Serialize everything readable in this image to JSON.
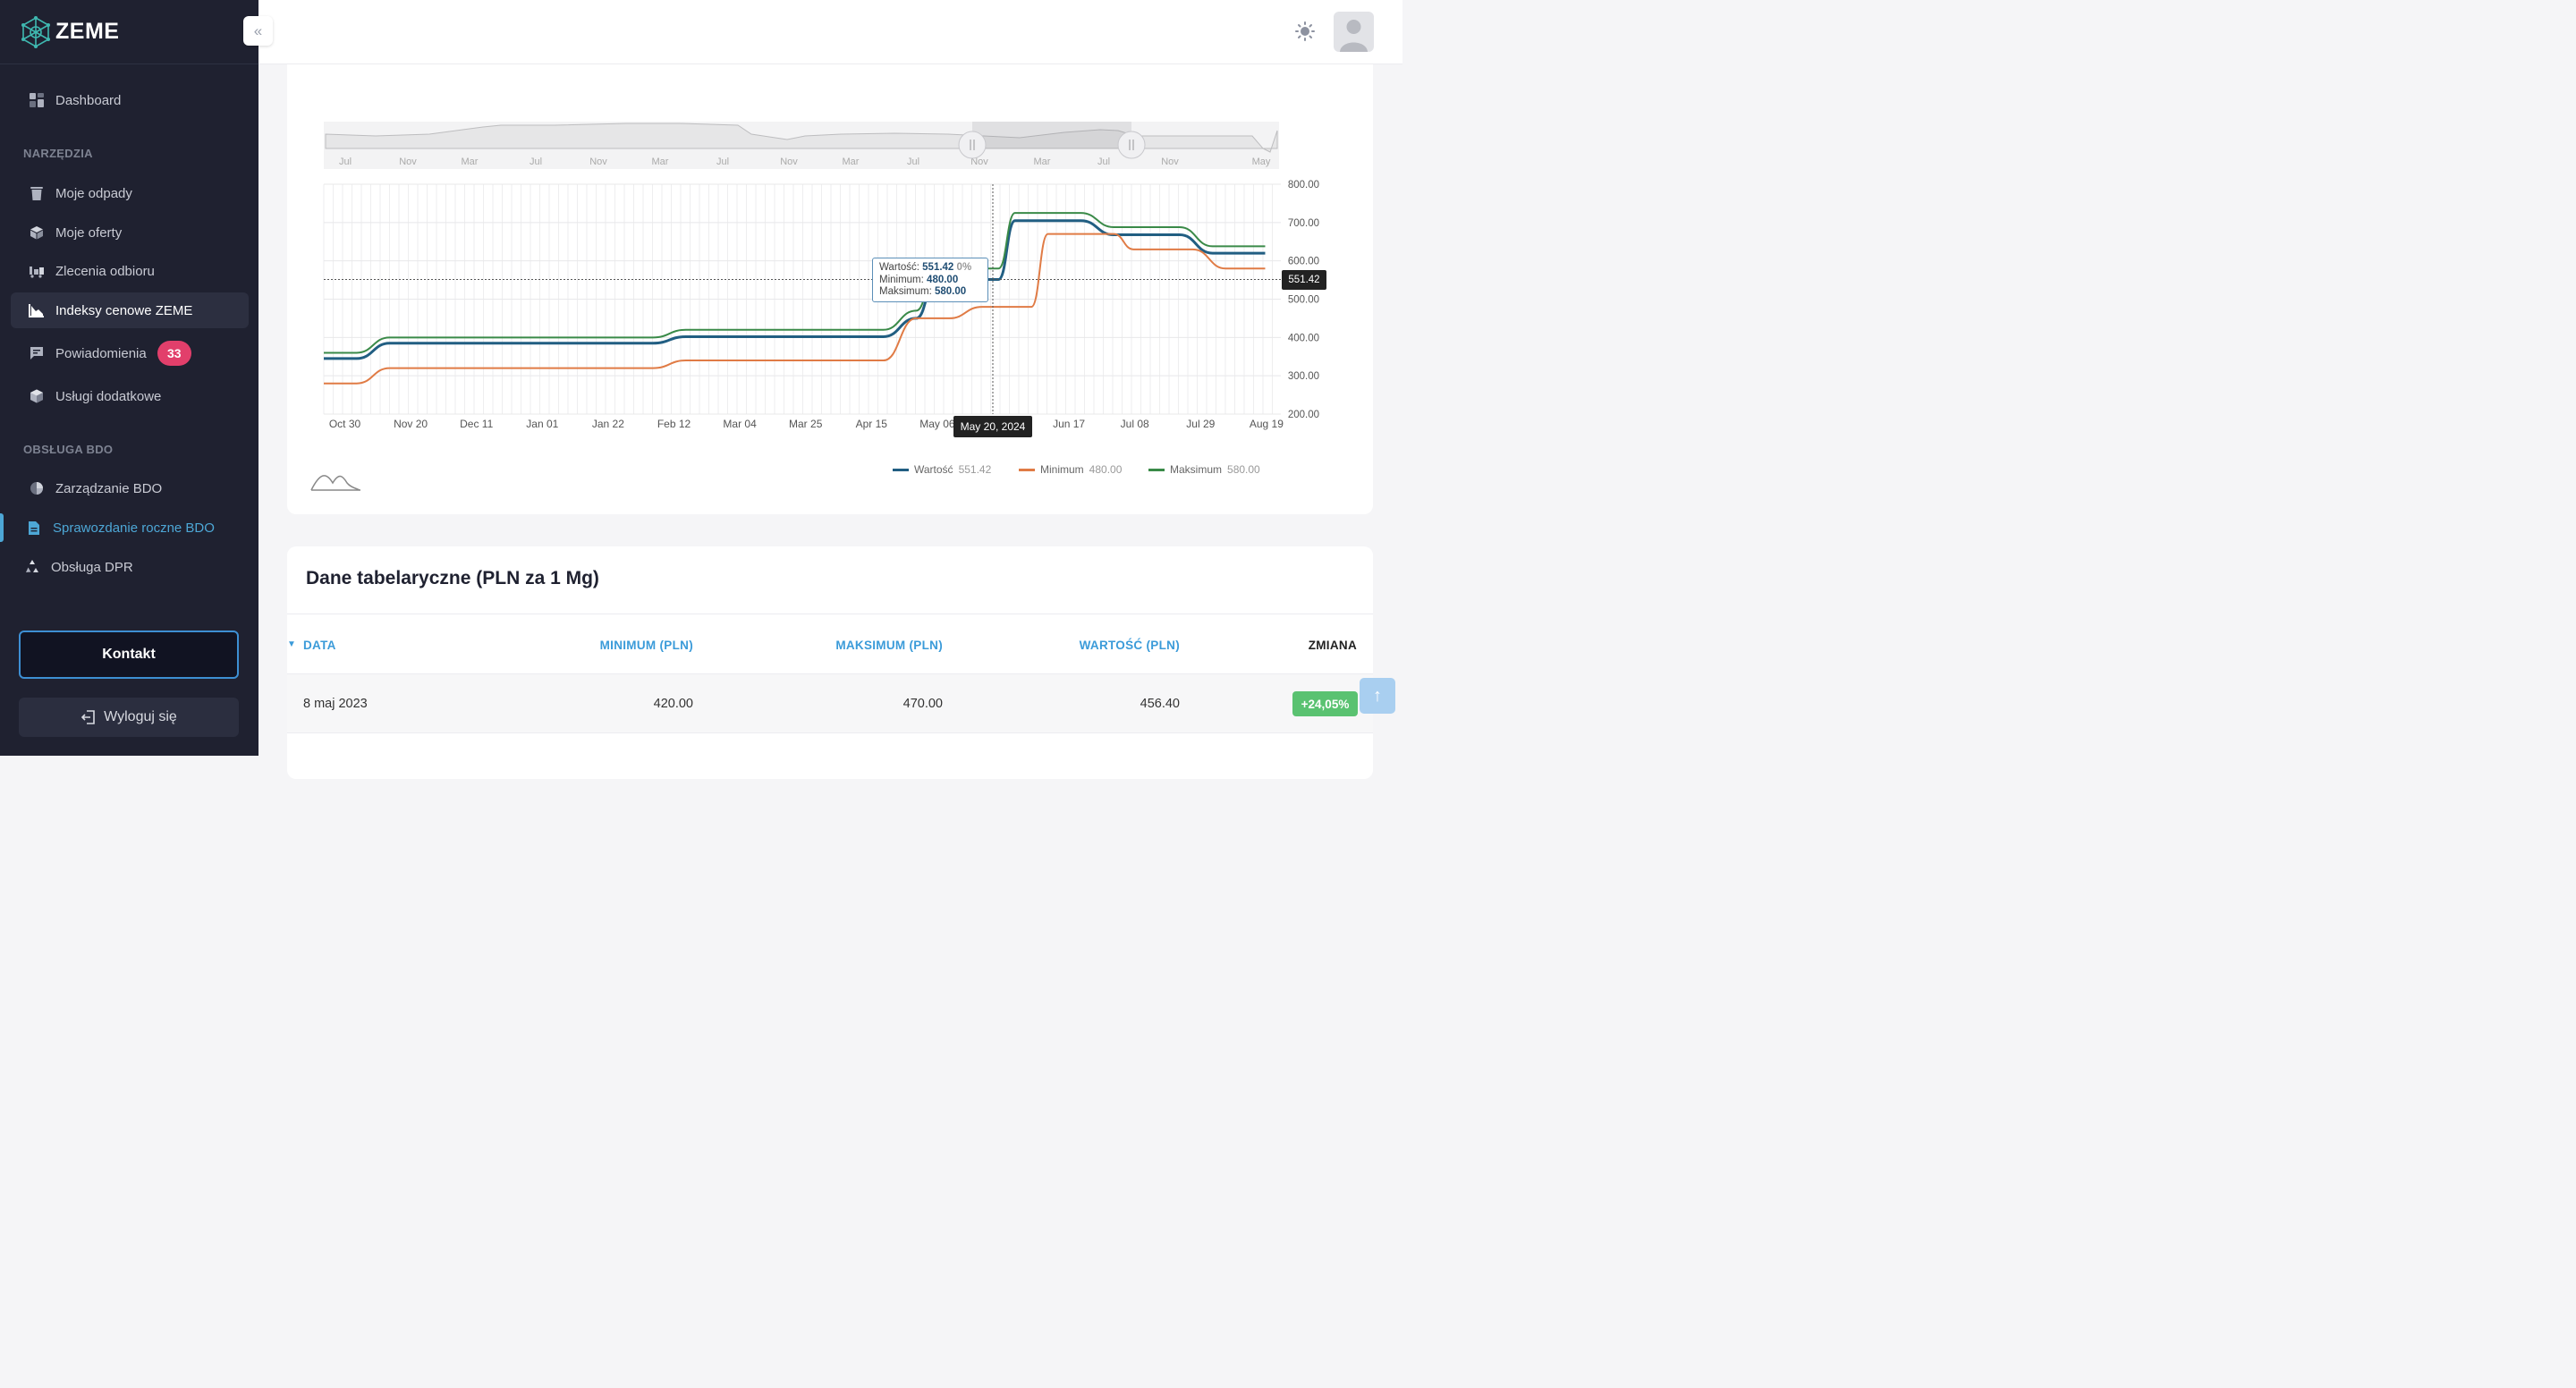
{
  "brand": {
    "name": "ZEME"
  },
  "sidebar": {
    "items": [
      {
        "label": "Dashboard",
        "icon": "dashboard-icon"
      },
      {
        "label": "Moje odpady",
        "icon": "trash-icon"
      },
      {
        "label": "Moje oferty",
        "icon": "box-icon"
      },
      {
        "label": "Zlecenia odbioru",
        "icon": "truck-icon"
      },
      {
        "label": "Indeksy cenowe ZEME",
        "icon": "chart-icon"
      },
      {
        "label": "Powiadomienia",
        "icon": "message-icon",
        "badge": "33"
      },
      {
        "label": "Usługi dodatkowe",
        "icon": "cube-icon"
      },
      {
        "label": "Zarządzanie BDO",
        "icon": "pie-icon"
      },
      {
        "label": "Sprawozdanie roczne BDO",
        "icon": "document-icon"
      },
      {
        "label": "Obsługa DPR",
        "icon": "recycle-icon"
      }
    ],
    "sections": {
      "tools": "NARZĘDZIA",
      "bdo": "OBSŁUGA BDO"
    },
    "contact_label": "Kontakt",
    "logout_label": "Wyloguj się"
  },
  "chart_data": {
    "type": "line",
    "x_labels": [
      "Oct 30",
      "Nov 20",
      "Dec 11",
      "Jan 01",
      "Jan 22",
      "Feb 12",
      "Mar 04",
      "Mar 25",
      "Apr 15",
      "May 06",
      "Jun 17",
      "Jul 08",
      "Jul 29",
      "Aug 19"
    ],
    "y_ticks": [
      "800.00",
      "700.00",
      "600.00",
      "500.00",
      "400.00",
      "300.00",
      "200.00"
    ],
    "ylim": [
      200,
      800
    ],
    "navigator_labels": [
      "Jul",
      "Nov",
      "Mar",
      "Jul",
      "Nov",
      "Mar",
      "Jul",
      "Nov",
      "Mar",
      "Jul",
      "Nov",
      "Mar",
      "Jul",
      "Nov",
      "May"
    ],
    "series": [
      {
        "name": "Wartość",
        "color": "#215e82",
        "last_value": "551.42",
        "points": [
          [
            0,
            345
          ],
          [
            0.5,
            345
          ],
          [
            1,
            385
          ],
          [
            5,
            385
          ],
          [
            5.5,
            402
          ],
          [
            8.5,
            402
          ],
          [
            9,
            450
          ],
          [
            9.3,
            551.42
          ],
          [
            10.25,
            551.42
          ],
          [
            10.5,
            705
          ],
          [
            11.5,
            705
          ],
          [
            12,
            668
          ],
          [
            13,
            668
          ],
          [
            13.5,
            620
          ],
          [
            14.3,
            620
          ]
        ]
      },
      {
        "name": "Minimum",
        "color": "#e07b45",
        "last_value": "480.00",
        "points": [
          [
            0,
            280
          ],
          [
            0.5,
            280
          ],
          [
            1,
            320
          ],
          [
            5,
            320
          ],
          [
            5.5,
            340
          ],
          [
            8.5,
            340
          ],
          [
            9,
            450
          ],
          [
            9.5,
            450
          ],
          [
            10,
            480
          ],
          [
            10.75,
            480
          ],
          [
            11,
            670
          ],
          [
            12,
            670
          ],
          [
            12.3,
            630
          ],
          [
            13.2,
            630
          ],
          [
            13.7,
            580
          ],
          [
            14.3,
            580
          ]
        ]
      },
      {
        "name": "Maksimum",
        "color": "#3a8a48",
        "last_value": "580.00",
        "points": [
          [
            0,
            360
          ],
          [
            0.5,
            360
          ],
          [
            1,
            400
          ],
          [
            5,
            400
          ],
          [
            5.5,
            420
          ],
          [
            8.5,
            420
          ],
          [
            9,
            470
          ],
          [
            9.3,
            580
          ],
          [
            10.25,
            580
          ],
          [
            10.5,
            725
          ],
          [
            11.5,
            725
          ],
          [
            12,
            688
          ],
          [
            13,
            688
          ],
          [
            13.5,
            638
          ],
          [
            14.3,
            638
          ]
        ]
      }
    ],
    "crosshair": {
      "date": "May 20, 2024",
      "value": "551.42"
    },
    "tooltip": {
      "value_label": "Wartość:",
      "value": "551.42",
      "change": "0%",
      "min_label": "Minimum:",
      "min": "480.00",
      "max_label": "Maksimum:",
      "max": "580.00"
    }
  },
  "table": {
    "title": "Dane tabelaryczne (PLN za 1 Mg)",
    "columns": [
      "DATA",
      "MINIMUM (PLN)",
      "MAKSIMUM (PLN)",
      "WARTOŚĆ (PLN)",
      "ZMIANA"
    ],
    "rows": [
      {
        "date": "8 maj 2023",
        "min": "420.00",
        "max": "470.00",
        "value": "456.40",
        "change": "+24,05%"
      }
    ]
  },
  "colors": {
    "accent": "#3b9bd9",
    "badge": "#e23f6b",
    "positive": "#5ac271",
    "sidebar_bg": "#1f2130"
  }
}
